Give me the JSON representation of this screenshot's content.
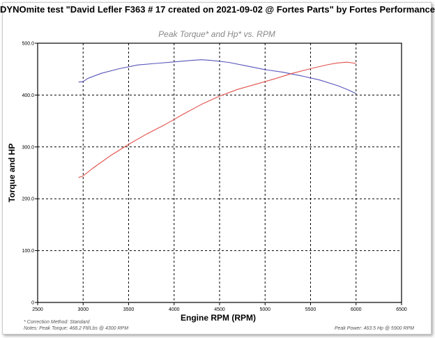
{
  "window": {
    "title": "DYNOmite test \"David Lefler F363 # 17 created on 2021-09-02 @ Fortes Parts\" by Fortes Performance"
  },
  "footer": {
    "correction_method": "* Correction Method: Standard",
    "notes": "Notes: Peak Torque: 468.2 Ftl/Lbs @ 4300 RPM",
    "peak_power": "Peak Power: 463.5 Hp @ 5900 RPM"
  },
  "chart_data": {
    "type": "line",
    "title": "Peak Torque* and Hp* vs. RPM",
    "xlabel": "Engine RPM (RPM)",
    "ylabel": "Torque and HP",
    "xlim": [
      2500,
      6500
    ],
    "ylim": [
      0,
      500
    ],
    "x_ticks": [
      "2500",
      "3000",
      "3500",
      "4000",
      "4500",
      "5000",
      "5500",
      "6000",
      "6500"
    ],
    "y_ticks": [
      "0",
      "100.0",
      "200.0",
      "300.0",
      "400.0",
      "500.0"
    ],
    "grid": true,
    "colors": {
      "torque": "#5555bb",
      "hp": "#e0504a",
      "grid": "#000000"
    },
    "series": [
      {
        "key": "torque",
        "x": [
          2950,
          3000,
          3050,
          3200,
          3400,
          3600,
          3800,
          4000,
          4200,
          4300,
          4400,
          4600,
          4800,
          5000,
          5200,
          5400,
          5600,
          5800,
          5900,
          6000
        ],
        "values": [
          425,
          426,
          432,
          442,
          451,
          458,
          461,
          464,
          467,
          468.2,
          467,
          463,
          456,
          449,
          444,
          437,
          429,
          418,
          411,
          403
        ]
      },
      {
        "key": "hp",
        "x": [
          2950,
          3000,
          3100,
          3300,
          3500,
          3700,
          3900,
          4100,
          4300,
          4500,
          4700,
          4900,
          5100,
          5300,
          5500,
          5700,
          5800,
          5900,
          6000
        ],
        "values": [
          241,
          244,
          258,
          283,
          305,
          325,
          343,
          363,
          382,
          398,
          411,
          421,
          431,
          442,
          451,
          459,
          462,
          463.5,
          461
        ]
      }
    ]
  }
}
